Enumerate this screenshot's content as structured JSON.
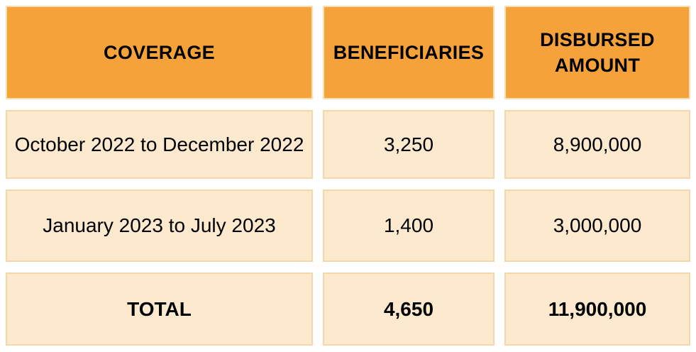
{
  "table": {
    "headers": [
      {
        "label": "COVERAGE"
      },
      {
        "label": "BENEFICIARIES"
      },
      {
        "label": "DISBURSED AMOUNT"
      }
    ],
    "rows": [
      {
        "coverage": "October 2022 to December 2022",
        "beneficiaries": "3,250",
        "disbursed": "8,900,000"
      },
      {
        "coverage": "January 2023 to July 2023",
        "beneficiaries": "1,400",
        "disbursed": "3,000,000"
      }
    ],
    "total": {
      "label": "TOTAL",
      "beneficiaries": "4,650",
      "disbursed": "11,900,000"
    }
  },
  "colors": {
    "header_bg": "#F5A23B",
    "header_border": "#F9DFB2",
    "cell_bg": "#FCE9CE",
    "cell_border": "#F2D7AB",
    "text_color": "#000000",
    "page_bg": "#FFFFFF"
  },
  "chart_data": {
    "type": "table",
    "columns": [
      "COVERAGE",
      "BENEFICIARIES",
      "DISBURSED AMOUNT"
    ],
    "rows": [
      [
        "October 2022 to December 2022",
        "3,250",
        "8,900,000"
      ],
      [
        "January 2023 to July 2023",
        "1,400",
        "3,000,000"
      ],
      [
        "TOTAL",
        "4,650",
        "11,900,000"
      ]
    ],
    "numeric": {
      "beneficiaries": [
        3250,
        1400
      ],
      "disbursed_amount": [
        8900000,
        3000000
      ],
      "total_beneficiaries": 4650,
      "total_disbursed_amount": 11900000
    }
  }
}
